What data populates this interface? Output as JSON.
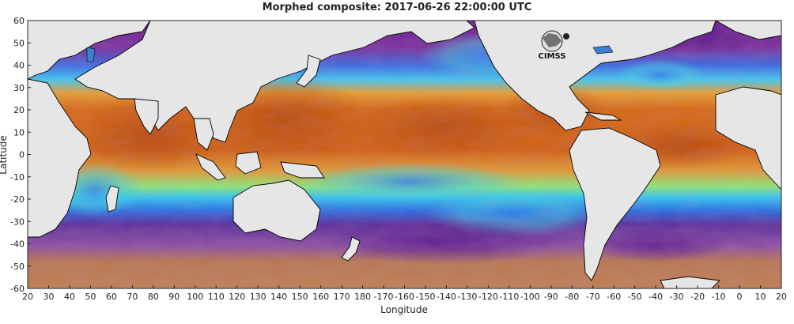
{
  "title": "Morphed composite: 2017-06-26 22:00:00 UTC",
  "xlabel": "Longitude",
  "ylabel": "Latitude",
  "x_ticks": [
    "20",
    "30",
    "40",
    "50",
    "60",
    "70",
    "80",
    "90",
    "100",
    "110",
    "120",
    "130",
    "140",
    "150",
    "160",
    "170",
    "180",
    "-170",
    "-160",
    "-150",
    "-140",
    "-130",
    "-120",
    "-110",
    "-100",
    "-90",
    "-80",
    "-70",
    "-60",
    "-50",
    "-40",
    "-30",
    "-20",
    "-10",
    "0",
    "10",
    "20"
  ],
  "y_ticks": [
    "60",
    "50",
    "40",
    "30",
    "20",
    "10",
    "0",
    "-10",
    "-20",
    "-30",
    "-40",
    "-50",
    "-60"
  ],
  "logo": {
    "text": "CIMSS"
  },
  "colors": {
    "dry": "#6a1f8f",
    "low": "#c07a52",
    "moist_blue": "#1f8cf0",
    "moist_cyan": "#3fe0d8",
    "moist_green": "#8cf070",
    "moist_yellow": "#f0e040",
    "very_moist": "#d96410",
    "land": "#e6e6e6"
  }
}
